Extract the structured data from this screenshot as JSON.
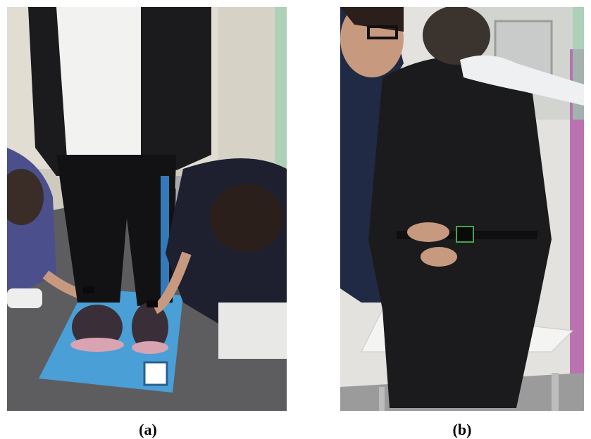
{
  "figure": {
    "panel_a": {
      "caption": "(a)"
    },
    "panel_b": {
      "caption": "(b)"
    }
  },
  "colors": {
    "floor": "#d9d4c8",
    "mat_blue": "#4a9fd6",
    "clothing_black": "#1b1b1d",
    "shirt_white": "#f2f2f0",
    "scrubs_purple": "#4b4f8c",
    "glove_white": "#eef0f2"
  }
}
